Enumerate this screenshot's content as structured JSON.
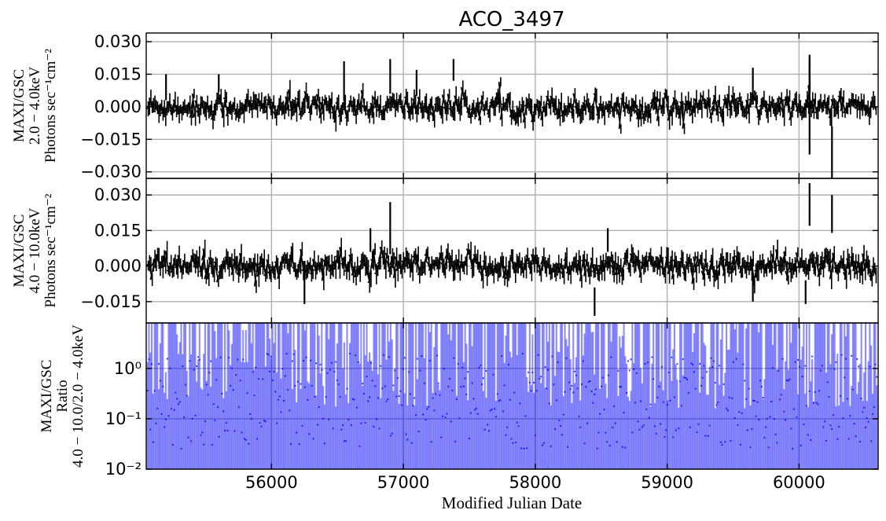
{
  "chart_data": {
    "title": "ACO_3497",
    "xlabel": "Modified Julian Date",
    "xlim": [
      55050,
      60600
    ],
    "x_ticks": [
      56000,
      57000,
      58000,
      59000,
      60000
    ],
    "grid": true,
    "panels": [
      {
        "type": "errorbar",
        "ylabel_lines": [
          "MAXI/GSC",
          "2.0 − 4.0keV",
          "Photons sec⁻¹cm⁻²"
        ],
        "ylim": [
          -0.033,
          0.034
        ],
        "y_ticks": [
          0.03,
          0.015,
          0.0,
          -0.015,
          -0.03
        ],
        "y_tick_labels": [
          "0.030",
          "0.015",
          "0.000",
          "−0.015",
          "−0.030"
        ],
        "color": "#000000",
        "noise_sigma": 0.0055,
        "spikes": [
          {
            "x": 55200,
            "y": 0.009,
            "err": 0.006
          },
          {
            "x": 55600,
            "y": 0.011,
            "err": 0.004
          },
          {
            "x": 56550,
            "y": 0.012,
            "err": 0.009
          },
          {
            "x": 56900,
            "y": 0.014,
            "err": 0.008
          },
          {
            "x": 57100,
            "y": 0.011,
            "err": 0.006
          },
          {
            "x": 57380,
            "y": 0.017,
            "err": 0.005
          },
          {
            "x": 59650,
            "y": 0.011,
            "err": 0.007
          },
          {
            "x": 60080,
            "y": 0.0,
            "err": 0.022
          },
          {
            "x": 60080,
            "y": 0.015,
            "err": 0.009
          },
          {
            "x": 60250,
            "y": -0.022,
            "err": 0.013
          }
        ]
      },
      {
        "type": "errorbar",
        "ylabel_lines": [
          "MAXI/GSC",
          "4.0 − 10.0keV",
          "Photons sec⁻¹cm⁻²"
        ],
        "ylim": [
          -0.024,
          0.037
        ],
        "y_ticks": [
          0.03,
          0.015,
          0.0,
          -0.015
        ],
        "y_tick_labels": [
          "0.030",
          "0.015",
          "0.000",
          "−0.015"
        ],
        "color": "#000000",
        "noise_sigma": 0.0055,
        "spikes": [
          {
            "x": 56250,
            "y": -0.009,
            "err": 0.007
          },
          {
            "x": 56750,
            "y": 0.011,
            "err": 0.005
          },
          {
            "x": 56900,
            "y": 0.016,
            "err": 0.011
          },
          {
            "x": 58450,
            "y": -0.015,
            "err": 0.006
          },
          {
            "x": 58550,
            "y": 0.011,
            "err": 0.005
          },
          {
            "x": 59650,
            "y": -0.009,
            "err": 0.006
          },
          {
            "x": 60050,
            "y": -0.011,
            "err": 0.005
          },
          {
            "x": 60080,
            "y": 0.026,
            "err": 0.009
          },
          {
            "x": 60250,
            "y": 0.022,
            "err": 0.008
          }
        ]
      },
      {
        "type": "ratio-errorbar",
        "ylabel_lines": [
          "MAXI/GSC",
          "Ratio",
          "4.0 − 10.0/2.0 − 4.0keV"
        ],
        "yscale": "log",
        "ylim": [
          0.01,
          8.0
        ],
        "y_ticks": [
          1.0,
          0.1,
          0.01
        ],
        "y_tick_labels": [
          "10⁰",
          "10⁻¹",
          "10⁻²"
        ],
        "color": "#0000ff"
      }
    ]
  }
}
